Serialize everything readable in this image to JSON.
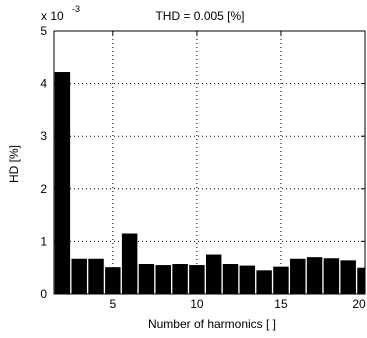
{
  "chart_data": {
    "type": "bar",
    "title": "THD = 0.005 [%]",
    "xlabel": "Number of harmonics [ ]",
    "ylabel": "HD [%]",
    "y_exponent_label": "x 10",
    "y_exponent_power": "-3",
    "x": [
      2,
      3,
      4,
      5,
      6,
      7,
      8,
      9,
      10,
      11,
      12,
      13,
      14,
      15,
      16,
      17,
      18,
      19,
      20
    ],
    "values": [
      4.22,
      0.67,
      0.67,
      0.51,
      1.15,
      0.57,
      0.55,
      0.57,
      0.55,
      0.75,
      0.57,
      0.54,
      0.45,
      0.52,
      0.67,
      0.7,
      0.68,
      0.64,
      0.5
    ],
    "xlim": [
      1.5,
      20
    ],
    "ylim": [
      0,
      5
    ],
    "xticks": [
      5,
      10,
      15,
      20
    ],
    "yticks": [
      0,
      1,
      2,
      3,
      4,
      5
    ],
    "xtick_labels": [
      "5",
      "10",
      "15",
      "20"
    ],
    "ytick_labels": [
      "0",
      "1",
      "2",
      "3",
      "4",
      "5"
    ],
    "bar_color": "#000000",
    "grid": "dotted",
    "units": "percent x 10^-3"
  }
}
